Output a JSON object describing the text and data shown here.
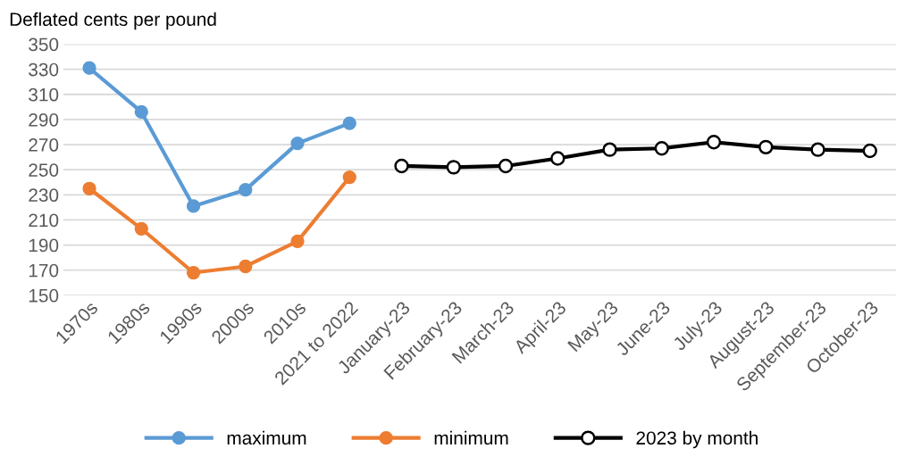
{
  "chart_data": {
    "type": "line",
    "ylabel": "Deflated cents per pound",
    "categories": [
      "1970s",
      "1980s",
      "1990s",
      "2000s",
      "2010s",
      "2021 to 2022",
      "January-23",
      "February-23",
      "March-23",
      "April-23",
      "May-23",
      "June-23",
      "July-23",
      "August-23",
      "September-23",
      "October-23"
    ],
    "series": [
      {
        "name": "maximum",
        "color": "#5b9bd5",
        "marker": "circle",
        "values": [
          331,
          296,
          221,
          234,
          271,
          287,
          null,
          null,
          null,
          null,
          null,
          null,
          null,
          null,
          null,
          null
        ]
      },
      {
        "name": "minimum",
        "color": "#ed7d31",
        "marker": "circle",
        "values": [
          235,
          203,
          168,
          173,
          193,
          244,
          null,
          null,
          null,
          null,
          null,
          null,
          null,
          null,
          null,
          null
        ]
      },
      {
        "name": "2023 by month",
        "color": "#000000",
        "marker": "circle_open",
        "values": [
          null,
          null,
          null,
          null,
          null,
          null,
          253,
          252,
          253,
          259,
          266,
          267,
          272,
          268,
          266,
          265
        ]
      }
    ],
    "ylim": [
      150,
      350
    ],
    "yticks": [
      150,
      170,
      190,
      210,
      230,
      250,
      270,
      290,
      310,
      330,
      350
    ],
    "grid": "y",
    "legend": "bottom",
    "line_style": "solid"
  }
}
